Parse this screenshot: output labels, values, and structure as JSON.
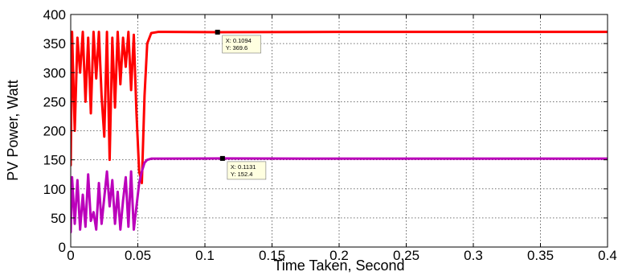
{
  "chart_data": {
    "type": "line",
    "title": "",
    "xlabel": "Time Taken, Second",
    "ylabel": "PV Power, Watt",
    "xlim": [
      0,
      0.4
    ],
    "ylim": [
      0,
      400
    ],
    "xticks": [
      "0",
      "0.05",
      "0.1",
      "0.15",
      "0.2",
      "0.25",
      "0.3",
      "0.35",
      "0.4"
    ],
    "yticks": [
      "0",
      "50",
      "100",
      "150",
      "200",
      "250",
      "300",
      "350",
      "400"
    ],
    "grid": true,
    "series": [
      {
        "color": "#ff0000",
        "x": [
          0,
          0.001,
          0.003,
          0.005,
          0.007,
          0.009,
          0.011,
          0.013,
          0.015,
          0.017,
          0.019,
          0.021,
          0.023,
          0.025,
          0.027,
          0.029,
          0.031,
          0.033,
          0.035,
          0.037,
          0.039,
          0.041,
          0.043,
          0.045,
          0.047,
          0.049,
          0.051,
          0.053,
          0.055,
          0.057,
          0.06,
          0.065,
          0.07,
          0.1094,
          0.2,
          0.3,
          0.4
        ],
        "y": [
          140,
          370,
          200,
          360,
          300,
          370,
          250,
          360,
          230,
          370,
          290,
          370,
          260,
          190,
          370,
          150,
          360,
          240,
          370,
          280,
          360,
          310,
          370,
          270,
          365,
          230,
          130,
          110,
          260,
          350,
          368,
          370,
          370,
          369.6,
          370,
          370,
          370
        ]
      },
      {
        "color": "#bb00bb",
        "x": [
          0,
          0.001,
          0.003,
          0.005,
          0.007,
          0.009,
          0.011,
          0.013,
          0.015,
          0.017,
          0.019,
          0.021,
          0.023,
          0.025,
          0.027,
          0.029,
          0.031,
          0.033,
          0.035,
          0.037,
          0.039,
          0.041,
          0.043,
          0.045,
          0.047,
          0.049,
          0.051,
          0.053,
          0.055,
          0.057,
          0.06,
          0.065,
          0.07,
          0.1131,
          0.2,
          0.3,
          0.4
        ],
        "y": [
          25,
          120,
          40,
          115,
          30,
          90,
          35,
          125,
          45,
          60,
          30,
          110,
          40,
          85,
          130,
          70,
          115,
          40,
          95,
          30,
          80,
          120,
          35,
          130,
          30,
          70,
          110,
          130,
          145,
          150,
          152,
          152,
          152,
          152.4,
          152,
          152,
          152
        ]
      }
    ],
    "annotations": [
      {
        "x": 0.1094,
        "y": 369.6,
        "label_x": "X: 0.1094",
        "label_y": "Y: 369.6"
      },
      {
        "x": 0.1131,
        "y": 152.4,
        "label_x": "X: 0.1131",
        "label_y": "Y: 152.4"
      }
    ]
  }
}
